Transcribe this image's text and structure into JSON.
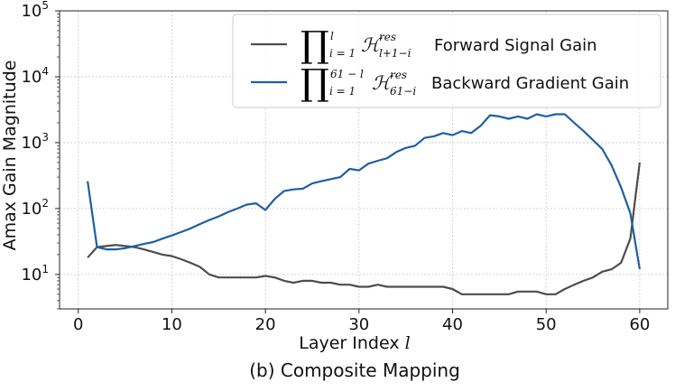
{
  "chart_data": {
    "type": "line",
    "xlabel": "Layer Index",
    "xlabel_var": "l",
    "ylabel": "Amax Gain Magnitude",
    "caption": "(b) Composite Mapping",
    "xlim": [
      -2,
      63
    ],
    "ylim": [
      3,
      100000
    ],
    "yscale": "log",
    "grid": true,
    "legend_position": "top-right",
    "xticks": [
      0,
      10,
      20,
      30,
      40,
      50,
      60
    ],
    "yticks": [
      {
        "value": 10,
        "exp": "1"
      },
      {
        "value": 100,
        "exp": "2"
      },
      {
        "value": 1000,
        "exp": "3"
      },
      {
        "value": 10000,
        "exp": "4"
      },
      {
        "value": 100000,
        "exp": "5"
      }
    ],
    "series": [
      {
        "name": "Forward Signal Gain",
        "legend_math": {
          "upper": "l",
          "lower": "i = 1",
          "sup": "res",
          "sub": "l+1−i"
        },
        "color": "#4d4d4d",
        "x": [
          1,
          2,
          3,
          4,
          5,
          6,
          7,
          8,
          9,
          10,
          11,
          12,
          13,
          14,
          15,
          16,
          17,
          18,
          19,
          20,
          21,
          22,
          23,
          24,
          25,
          26,
          27,
          28,
          29,
          30,
          31,
          32,
          33,
          34,
          35,
          36,
          37,
          38,
          39,
          40,
          41,
          42,
          43,
          44,
          45,
          46,
          47,
          48,
          49,
          50,
          51,
          52,
          53,
          54,
          55,
          56,
          57,
          58,
          59,
          60
        ],
        "y": [
          18,
          26,
          27,
          28,
          27,
          26,
          24,
          22,
          20,
          19,
          17,
          15,
          13,
          10,
          9,
          9,
          9,
          9,
          9,
          9.5,
          9,
          8,
          7.5,
          8,
          8,
          7.5,
          7.5,
          7,
          7,
          6.5,
          6.5,
          7,
          6.5,
          6.5,
          6.5,
          6.5,
          6.5,
          6.5,
          6.5,
          6,
          5,
          5,
          5,
          5,
          5,
          5,
          5.5,
          5.5,
          5.5,
          5,
          5,
          6,
          7,
          8,
          9,
          11,
          12,
          15,
          35,
          500
        ]
      },
      {
        "name": "Backward Gradient Gain",
        "legend_math": {
          "upper": "61 − l",
          "lower": "i = 1",
          "sup": "res",
          "sub": "61−i"
        },
        "color": "#1f5fa3",
        "x": [
          1,
          2,
          3,
          4,
          5,
          6,
          7,
          8,
          9,
          10,
          11,
          12,
          13,
          14,
          15,
          16,
          17,
          18,
          19,
          20,
          21,
          22,
          23,
          24,
          25,
          26,
          27,
          28,
          29,
          30,
          31,
          32,
          33,
          34,
          35,
          36,
          37,
          38,
          39,
          40,
          41,
          42,
          43,
          44,
          45,
          46,
          47,
          48,
          49,
          50,
          51,
          52,
          53,
          54,
          55,
          56,
          57,
          58,
          59,
          60
        ],
        "y": [
          260,
          26,
          24,
          24,
          25,
          27,
          29,
          31,
          35,
          39,
          44,
          50,
          58,
          67,
          76,
          88,
          100,
          115,
          120,
          95,
          140,
          185,
          195,
          200,
          240,
          260,
          280,
          300,
          400,
          380,
          480,
          530,
          580,
          720,
          830,
          900,
          1180,
          1250,
          1400,
          1300,
          1500,
          1400,
          1800,
          2600,
          2500,
          2300,
          2500,
          2300,
          2700,
          2500,
          2700,
          2700,
          2000,
          1500,
          1100,
          800,
          450,
          210,
          85,
          12
        ]
      }
    ]
  }
}
